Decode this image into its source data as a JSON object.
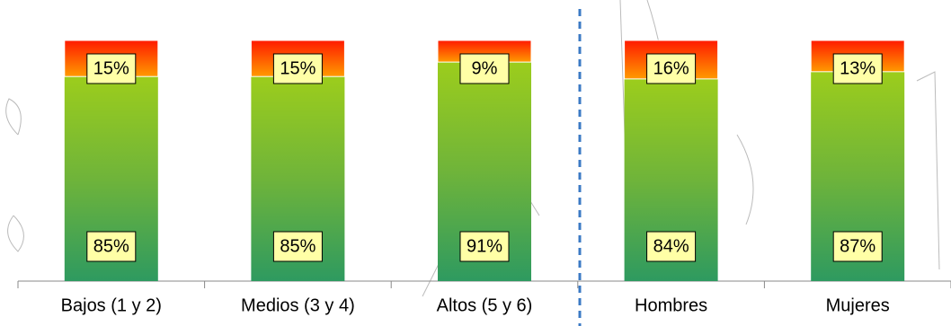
{
  "chart_data": {
    "type": "stacked_bar",
    "categories": [
      "Bajos (1 y 2)",
      "Medios (3 y 4)",
      "Altos (5 y 6)",
      "Hombres",
      "Mujeres"
    ],
    "series": [
      {
        "color": "#5fb040",
        "values": [
          85,
          85,
          91,
          84,
          87
        ],
        "value_labels": [
          "85%",
          "85%",
          "91%",
          "84%",
          "87%"
        ]
      },
      {
        "color": "#ff4000",
        "values": [
          15,
          15,
          9,
          16,
          13
        ],
        "value_labels": [
          "15%",
          "15%",
          "9%",
          "16%",
          "13%"
        ]
      }
    ]
  }
}
